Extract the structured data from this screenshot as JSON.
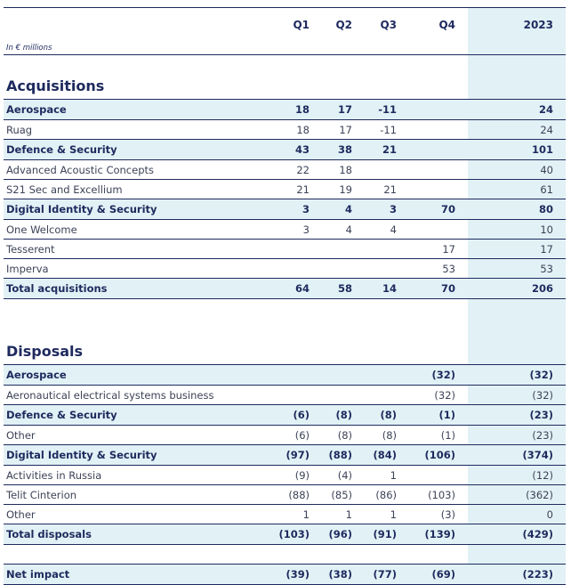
{
  "header": {
    "unit_label": "In € millions",
    "columns": [
      "Q1",
      "Q2",
      "Q3",
      "Q4",
      "2023"
    ]
  },
  "colors": {
    "text": "#1e2a5e",
    "shade": "#e2f1f5"
  },
  "acquisitions": {
    "title": "Acquisitions",
    "rows": [
      {
        "type": "sub",
        "label": "Aerospace",
        "values": [
          "18",
          "17",
          "-11",
          "",
          "24"
        ]
      },
      {
        "type": "item",
        "label": "Ruag",
        "values": [
          "18",
          "17",
          "-11",
          "",
          "24"
        ]
      },
      {
        "type": "sub",
        "label": "Defence & Security",
        "values": [
          "43",
          "38",
          "21",
          "",
          "101"
        ]
      },
      {
        "type": "item",
        "label": "Advanced Acoustic Concepts",
        "values": [
          "22",
          "18",
          "",
          "",
          "40"
        ]
      },
      {
        "type": "item",
        "label": "S21 Sec and Excellium",
        "values": [
          "21",
          "19",
          "21",
          "",
          "61"
        ]
      },
      {
        "type": "sub",
        "label": "Digital Identity & Security",
        "values": [
          "3",
          "4",
          "3",
          "70",
          "80"
        ]
      },
      {
        "type": "item",
        "label": "One Welcome",
        "values": [
          "3",
          "4",
          "4",
          "",
          "10"
        ]
      },
      {
        "type": "item",
        "label": "Tesserent",
        "values": [
          "",
          "",
          "",
          "17",
          "17"
        ]
      },
      {
        "type": "item",
        "label": "Imperva",
        "values": [
          "",
          "",
          "",
          "53",
          "53"
        ]
      },
      {
        "type": "total",
        "label": "Total acquisitions",
        "values": [
          "64",
          "58",
          "14",
          "70",
          "206"
        ]
      }
    ]
  },
  "disposals": {
    "title": "Disposals",
    "rows": [
      {
        "type": "sub",
        "label": "Aerospace",
        "values": [
          "",
          "",
          "",
          "(32)",
          "(32)"
        ]
      },
      {
        "type": "item",
        "label": "Aeronautical electrical systems business",
        "values": [
          "",
          "",
          "",
          "(32)",
          "(32)"
        ]
      },
      {
        "type": "sub",
        "label": "Defence & Security",
        "values": [
          "(6)",
          "(8)",
          "(8)",
          "(1)",
          "(23)"
        ]
      },
      {
        "type": "item",
        "label": "Other",
        "values": [
          "(6)",
          "(8)",
          "(8)",
          "(1)",
          "(23)"
        ]
      },
      {
        "type": "sub",
        "label": "Digital Identity & Security",
        "values": [
          "(97)",
          "(88)",
          "(84)",
          "(106)",
          "(374)"
        ]
      },
      {
        "type": "item",
        "label": "Activities in Russia",
        "values": [
          "(9)",
          "(4)",
          "1",
          "",
          "(12)"
        ]
      },
      {
        "type": "item",
        "label": "Telit Cinterion",
        "values": [
          "(88)",
          "(85)",
          "(86)",
          "(103)",
          "(362)"
        ]
      },
      {
        "type": "item",
        "label": "Other",
        "values": [
          "1",
          "1",
          "1",
          "(3)",
          "0"
        ]
      },
      {
        "type": "total",
        "label": "Total disposals",
        "values": [
          "(103)",
          "(96)",
          "(91)",
          "(139)",
          "(429)"
        ]
      }
    ]
  },
  "net": {
    "label": "Net impact",
    "values": [
      "(39)",
      "(38)",
      "(77)",
      "(69)",
      "(223)"
    ]
  }
}
